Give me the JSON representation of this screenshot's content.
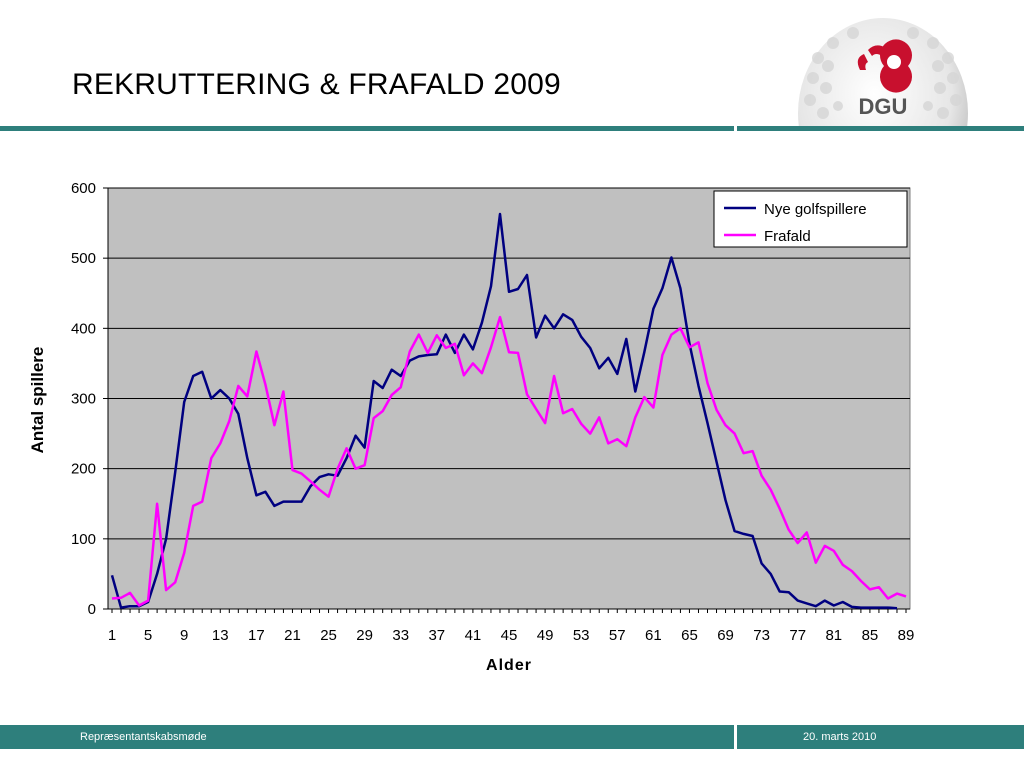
{
  "slide": {
    "title": "REKRUTTERING & FRAFALD 2009"
  },
  "logo": {
    "text": "DGU",
    "brand_color": "#c8102e"
  },
  "footer": {
    "left_text": "Repræsentantskabsmøde",
    "right_text": "20. marts 2010"
  },
  "colors": {
    "accent": "#2e7f7c",
    "plot_background": "#c0c0c0",
    "series_new": "#000080",
    "series_dropout": "#ff00ff"
  },
  "chart_data": {
    "type": "line",
    "xlabel": "Alder",
    "ylabel": "Antal spillere",
    "ylim": [
      0,
      600
    ],
    "yticks": [
      0,
      100,
      200,
      300,
      400,
      500,
      600
    ],
    "xticks": [
      1,
      5,
      9,
      13,
      17,
      21,
      25,
      29,
      33,
      37,
      41,
      45,
      49,
      53,
      57,
      61,
      65,
      69,
      73,
      77,
      81,
      85,
      89
    ],
    "x": [
      1,
      2,
      3,
      4,
      5,
      6,
      7,
      8,
      9,
      10,
      11,
      12,
      13,
      14,
      15,
      16,
      17,
      18,
      19,
      20,
      21,
      22,
      23,
      24,
      25,
      26,
      27,
      28,
      29,
      30,
      31,
      32,
      33,
      34,
      35,
      36,
      37,
      38,
      39,
      40,
      41,
      42,
      43,
      44,
      45,
      46,
      47,
      48,
      49,
      50,
      51,
      52,
      53,
      54,
      55,
      56,
      57,
      58,
      59,
      60,
      61,
      62,
      63,
      64,
      65,
      66,
      67,
      68,
      69,
      70,
      71,
      72,
      73,
      74,
      75,
      76,
      77,
      78,
      79,
      80,
      81,
      82,
      83,
      84,
      85,
      86,
      87,
      88,
      89
    ],
    "grid": "horizontal",
    "legend_position": "top-right",
    "series": [
      {
        "name": "Nye golfspillere",
        "color": "#000080",
        "values": [
          48,
          2,
          4,
          4,
          10,
          50,
          100,
          195,
          295,
          332,
          338,
          300,
          312,
          300,
          278,
          215,
          162,
          167,
          147,
          153,
          153,
          153,
          175,
          188,
          192,
          190,
          215,
          247,
          230,
          325,
          315,
          341,
          332,
          354,
          360,
          362,
          363,
          391,
          365,
          391,
          370,
          408,
          460,
          563,
          452,
          456,
          476,
          387,
          418,
          400,
          420,
          412,
          388,
          372,
          343,
          358,
          335,
          385,
          310,
          366,
          428,
          457,
          501,
          457,
          378,
          318,
          265,
          210,
          155,
          111,
          107,
          104,
          65,
          50,
          25,
          24,
          12,
          8,
          4,
          12,
          5,
          10,
          3,
          2,
          2,
          2,
          2,
          1,
          null
        ],
        "end_x": 88
      },
      {
        "name": "Frafald",
        "color": "#ff00ff",
        "values": [
          15,
          16,
          23,
          5,
          12,
          150,
          27,
          38,
          80,
          147,
          153,
          215,
          236,
          268,
          318,
          303,
          367,
          320,
          262,
          310,
          198,
          193,
          182,
          170,
          160,
          200,
          229,
          200,
          205,
          272,
          282,
          305,
          316,
          367,
          391,
          365,
          390,
          372,
          378,
          333,
          350,
          336,
          373,
          416,
          366,
          365,
          306,
          285,
          265,
          332,
          279,
          285,
          264,
          250,
          273,
          236,
          242,
          232,
          273,
          302,
          287,
          362,
          391,
          400,
          373,
          380,
          322,
          284,
          262,
          250,
          222,
          225,
          190,
          170,
          143,
          113,
          94,
          109,
          66,
          90,
          83,
          63,
          54,
          40,
          28,
          31,
          15,
          22,
          18
        ]
      }
    ]
  }
}
